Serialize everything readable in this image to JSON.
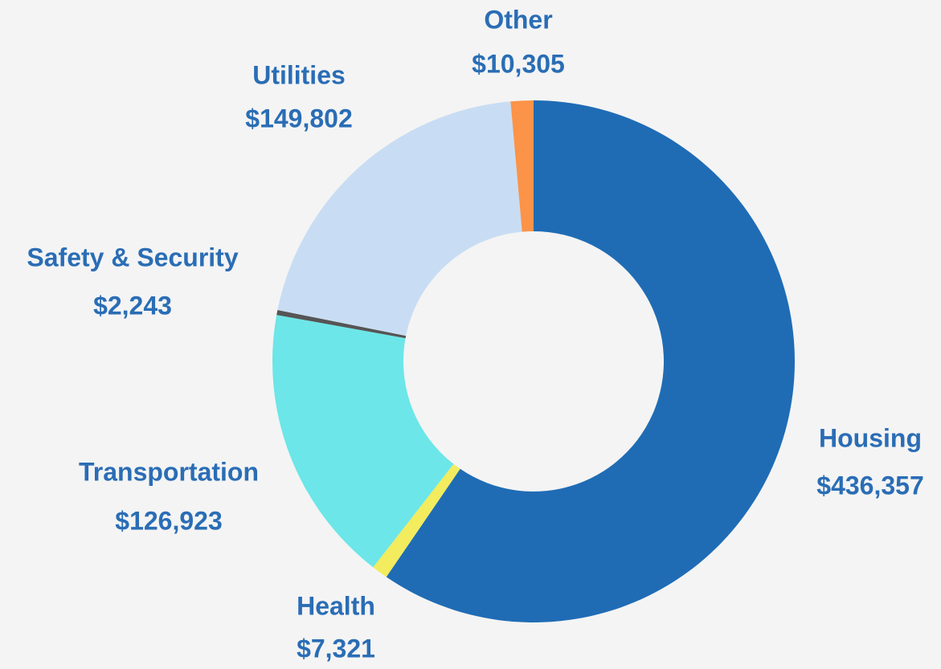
{
  "chart_data": {
    "type": "donut",
    "categories": [
      "Housing",
      "Health",
      "Transportation",
      "Safety & Security",
      "Utilities",
      "Other"
    ],
    "values": [
      436357,
      7321,
      126923,
      2243,
      149802,
      10305
    ],
    "value_labels": [
      "$436,357",
      "$7,321",
      "$126,923",
      "$2,243",
      "$149,802",
      "$10,305"
    ],
    "colors": [
      "#1f6cb5",
      "#f2ec5e",
      "#6ce6e8",
      "#555555",
      "#c8ddf3",
      "#fb9349"
    ]
  }
}
